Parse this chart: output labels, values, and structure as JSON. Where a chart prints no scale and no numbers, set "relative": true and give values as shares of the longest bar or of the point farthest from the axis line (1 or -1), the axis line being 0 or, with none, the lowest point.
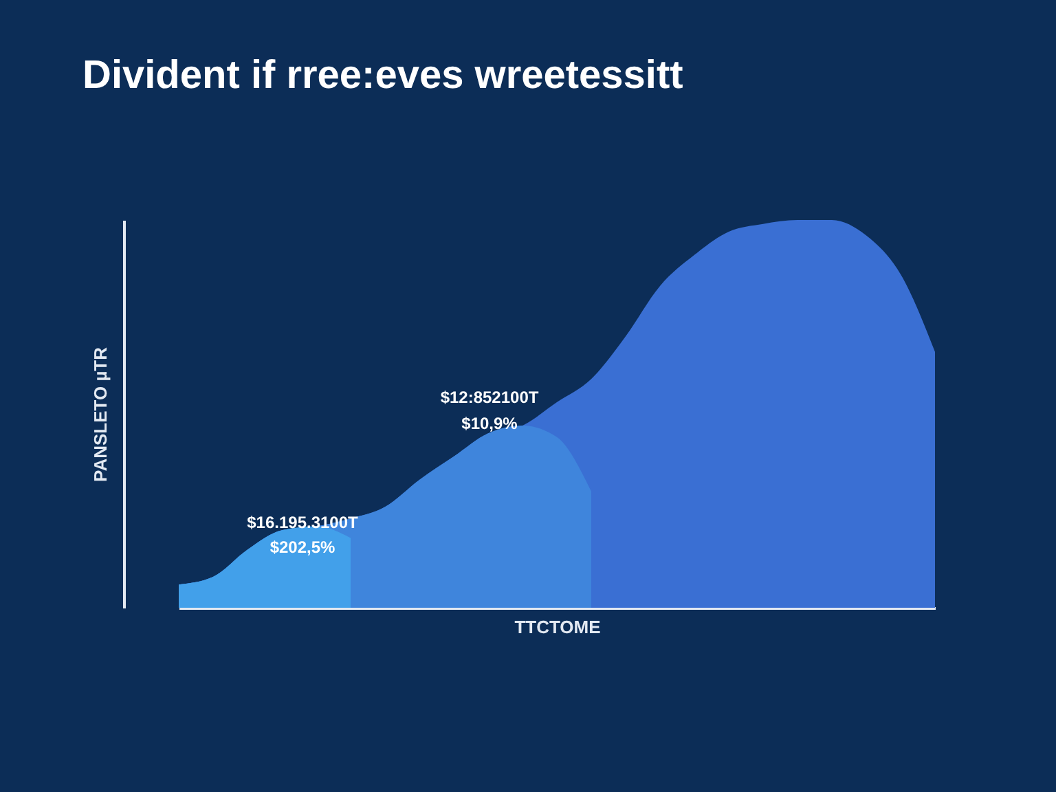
{
  "chart_data": {
    "type": "area",
    "title": "Divident if rree:eves wreetessitt",
    "xlabel": "TTCTOME",
    "ylabel": "PANSLETO µTR",
    "relative": true,
    "tick_labels": false,
    "grid": false,
    "categories": [
      null,
      null,
      null,
      null,
      null,
      null,
      null,
      null,
      null,
      null,
      null,
      null,
      null,
      null,
      null,
      null,
      null,
      null,
      null,
      null,
      null,
      null,
      null
    ],
    "series": [
      {
        "color": "#3a6fd3",
        "values": [
          0.06,
          0.08,
          0.15,
          0.2,
          0.21,
          0.23,
          0.26,
          0.33,
          0.39,
          0.45,
          0.47,
          0.53,
          0.59,
          0.7,
          0.83,
          0.91,
          0.97,
          0.99,
          1.0,
          1.0,
          0.96,
          0.86,
          0.66
        ]
      },
      {
        "color": "#3f85dc",
        "values": [
          0.06,
          0.08,
          0.15,
          0.2,
          0.21,
          0.23,
          0.26,
          0.33,
          0.39,
          0.45,
          0.47,
          0.44,
          0.3,
          null,
          null,
          null,
          null,
          null,
          null,
          null,
          null,
          null,
          null
        ]
      },
      {
        "color": "#42a0ea",
        "values": [
          0.06,
          0.08,
          0.15,
          0.2,
          0.21,
          0.18,
          null,
          null,
          null,
          null,
          null,
          null,
          null,
          null,
          null,
          null,
          null,
          null,
          null,
          null,
          null,
          null,
          null
        ]
      }
    ],
    "annotations": [
      "$16.195.3100T",
      "$202,5%",
      "$12:852100T",
      "$10,9%"
    ]
  }
}
